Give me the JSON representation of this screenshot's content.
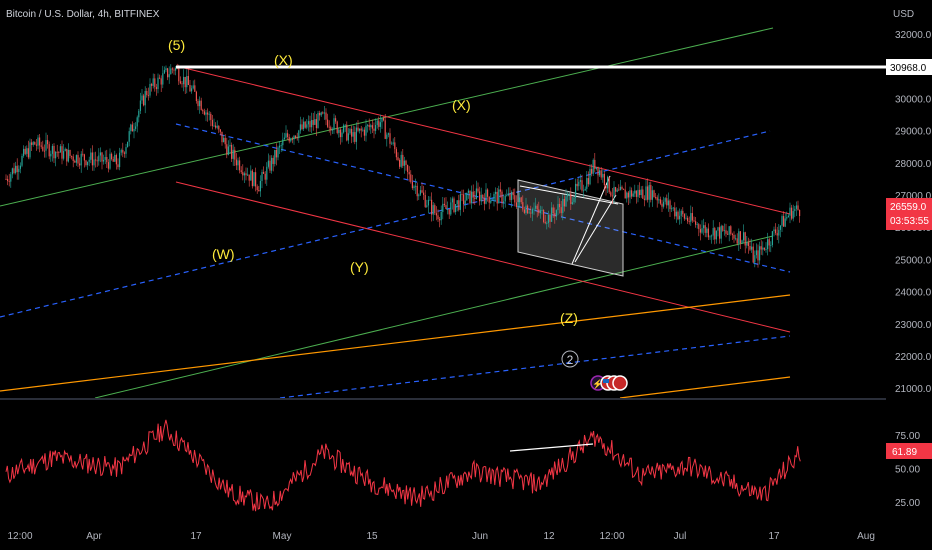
{
  "header": {
    "symbol_line": "Bitcoin / U.S. Dollar, 4h, BITFINEX",
    "currency": "USD"
  },
  "price_axis": {
    "ticks": [
      "32000.0",
      "31000.0",
      "30000.0",
      "29000.0",
      "28000.0",
      "27000.0",
      "26000.0",
      "25000.0",
      "24000.0",
      "23000.0",
      "22000.0",
      "21000.0"
    ],
    "hline_label": "30968.0",
    "last_price": "26559.0",
    "countdown": "03:53:55"
  },
  "osc_axis": {
    "ticks": [
      "75.00",
      "50.00",
      "25.00"
    ],
    "last_value": "61.89"
  },
  "time_axis": {
    "ticks": [
      "12:00",
      "Apr",
      "17",
      "May",
      "15",
      "Jun",
      "12",
      "12:00",
      "Jul",
      "17",
      "Aug"
    ]
  },
  "wave_labels": [
    "(5)",
    "(X)",
    "(X)",
    "(W)",
    "(Y)",
    "(Z)"
  ],
  "marker": {
    "number": "2"
  },
  "colors": {
    "background": "#000000",
    "candle_up": "#26a69a",
    "candle_down": "#ef5350",
    "red_channel": "#f23645",
    "green_line": "#4caf50",
    "blue_dashed": "#2962ff",
    "orange_line": "#ff9800",
    "wave_label": "#ffeb3b",
    "oscillator": "#f23645"
  },
  "chart_data": {
    "type": "line",
    "title": "Bitcoin / U.S. Dollar, 4h, BITFINEX",
    "y_unit": "USD",
    "ylim": [
      20600,
      32700
    ],
    "price_path": [
      [
        "2023-03-27",
        27500
      ],
      [
        "2023-03-30",
        28600
      ],
      [
        "2023-04-03",
        28200
      ],
      [
        "2023-04-08",
        28000
      ],
      [
        "2023-04-11",
        30200
      ],
      [
        "2023-04-14",
        30968
      ],
      [
        "2023-04-17",
        29800
      ],
      [
        "2023-04-20",
        28300
      ],
      [
        "2023-04-23",
        27300
      ],
      [
        "2023-04-26",
        28800
      ],
      [
        "2023-04-30",
        29400
      ],
      [
        "2023-05-03",
        28800
      ],
      [
        "2023-05-06",
        29300
      ],
      [
        "2023-05-09",
        27600
      ],
      [
        "2023-05-12",
        26400
      ],
      [
        "2023-05-16",
        27000
      ],
      [
        "2023-05-20",
        26900
      ],
      [
        "2023-05-24",
        26300
      ],
      [
        "2023-05-28",
        27400
      ],
      [
        "2023-05-29",
        28000
      ],
      [
        "2023-05-31",
        27000
      ],
      [
        "2023-06-04",
        27100
      ],
      [
        "2023-06-07",
        26400
      ],
      [
        "2023-06-10",
        25900
      ],
      [
        "2023-06-14",
        25700
      ],
      [
        "2023-06-15",
        25000
      ],
      [
        "2023-06-19",
        26500
      ],
      [
        "2023-06-20",
        26559
      ]
    ],
    "horizontal_level": 30968,
    "oscillator": {
      "ylim": [
        10,
        95
      ],
      "ticks": [
        25,
        50,
        75
      ],
      "last_value": 61.89,
      "path": [
        [
          "2023-03-27",
          45
        ],
        [
          "2023-04-01",
          58
        ],
        [
          "2023-04-08",
          50
        ],
        [
          "2023-04-13",
          80
        ],
        [
          "2023-04-20",
          32
        ],
        [
          "2023-04-24",
          22
        ],
        [
          "2023-04-30",
          62
        ],
        [
          "2023-05-05",
          40
        ],
        [
          "2023-05-10",
          28
        ],
        [
          "2023-05-16",
          48
        ],
        [
          "2023-05-23",
          38
        ],
        [
          "2023-05-29",
          74
        ],
        [
          "2023-06-03",
          44
        ],
        [
          "2023-06-08",
          52
        ],
        [
          "2023-06-12",
          40
        ],
        [
          "2023-06-16",
          30
        ],
        [
          "2023-06-20",
          62
        ]
      ]
    }
  }
}
